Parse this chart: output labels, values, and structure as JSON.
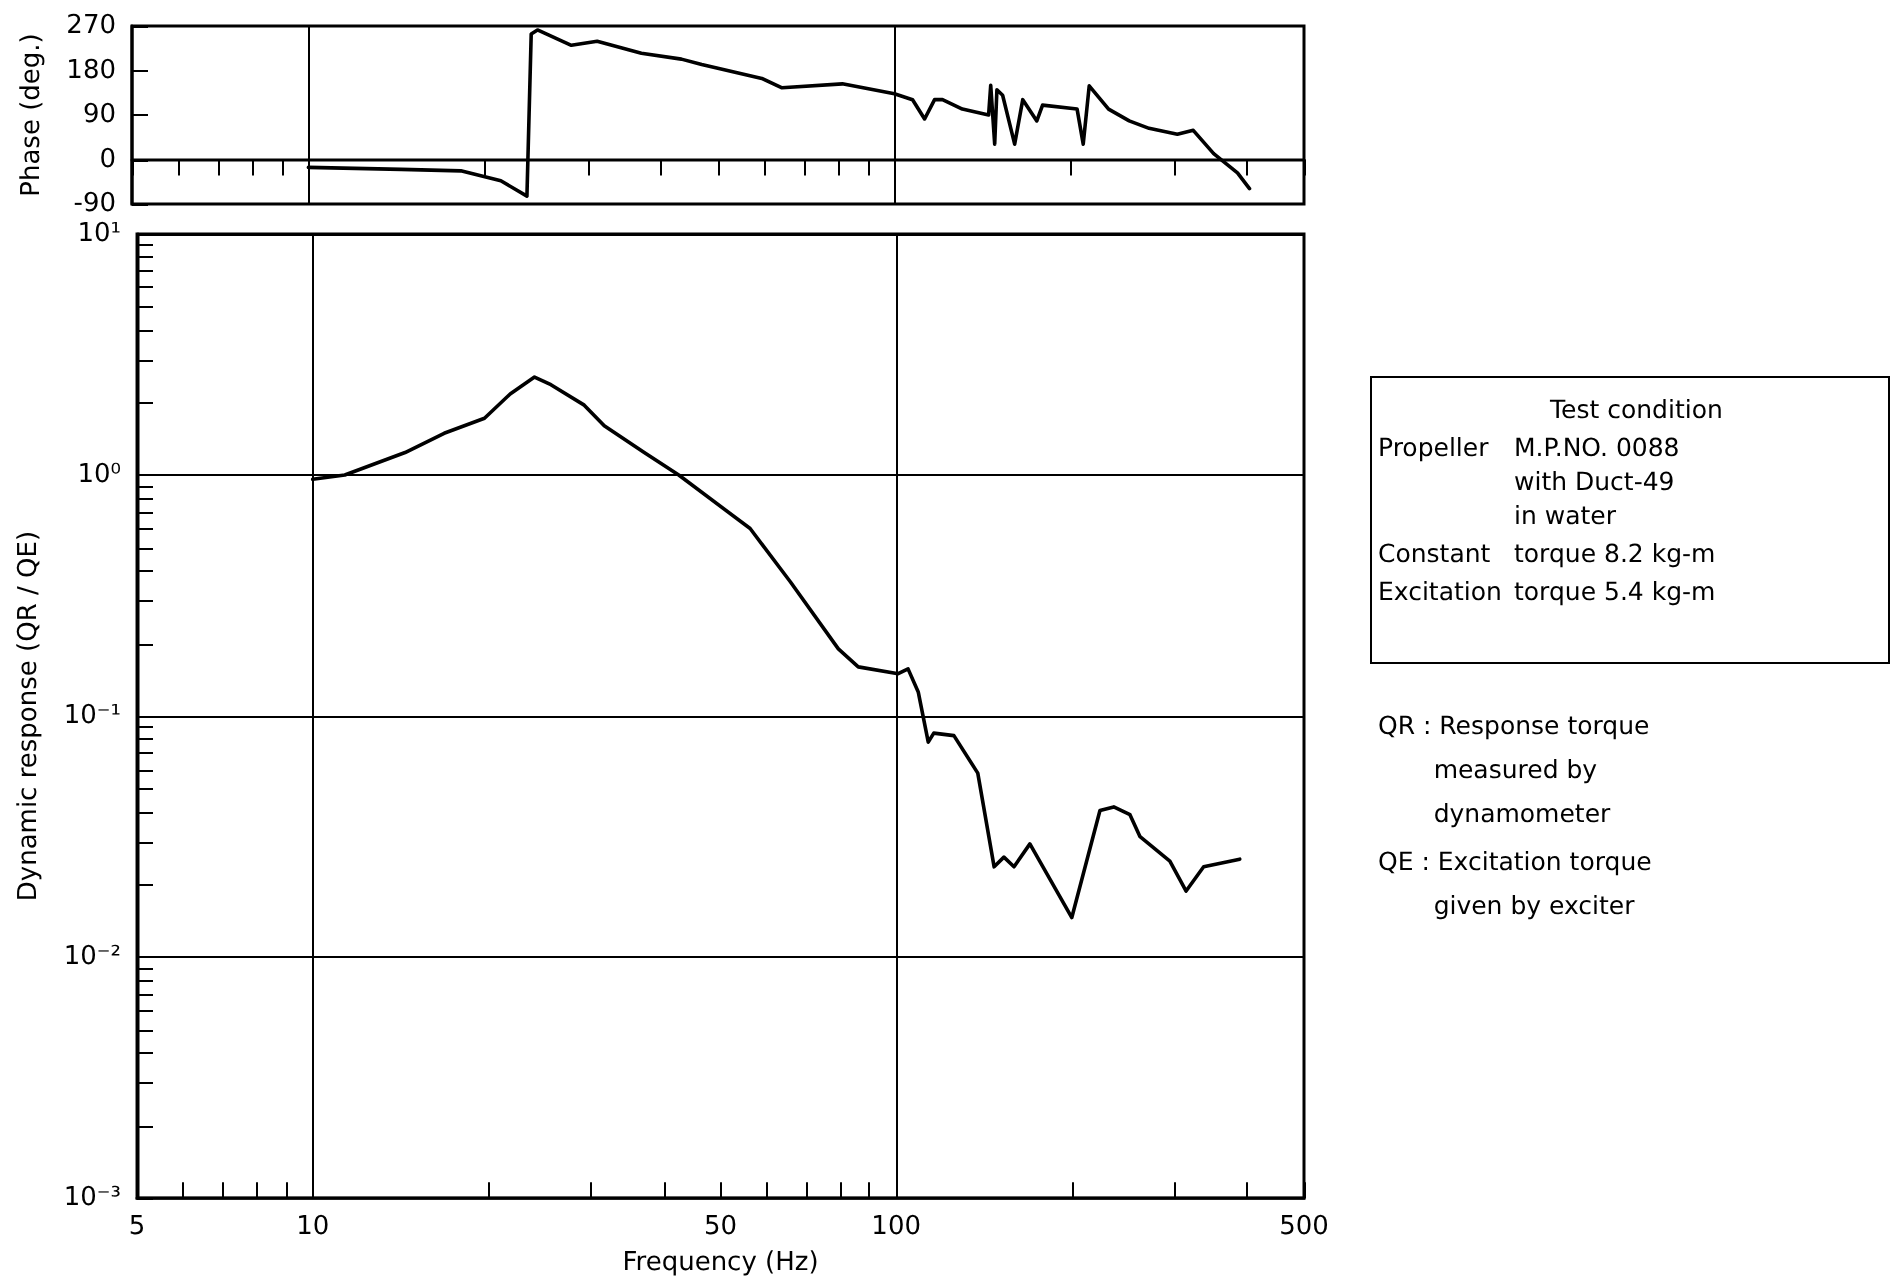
{
  "chart_data": [
    {
      "type": "line",
      "ylabel": "Phase (deg.)",
      "log": "x",
      "grid": false,
      "tick_labels": "y",
      "marker": "none",
      "line_style": "solid",
      "xlim": [
        5,
        500
      ],
      "xticks": [
        {
          "value": 5,
          "label": null
        },
        {
          "value": 6,
          "label": null
        },
        {
          "value": 7,
          "label": null
        },
        {
          "value": 8,
          "label": null
        },
        {
          "value": 9,
          "label": null
        },
        {
          "value": 10,
          "label": null
        },
        {
          "value": 20,
          "label": null
        },
        {
          "value": 30,
          "label": null
        },
        {
          "value": 40,
          "label": null
        },
        {
          "value": 50,
          "label": null
        },
        {
          "value": 60,
          "label": null
        },
        {
          "value": 70,
          "label": null
        },
        {
          "value": 80,
          "label": null
        },
        {
          "value": 90,
          "label": null
        },
        {
          "value": 100,
          "label": null
        },
        {
          "value": 200,
          "label": null
        },
        {
          "value": 300,
          "label": null
        },
        {
          "value": 400,
          "label": null
        },
        {
          "value": 500,
          "label": null
        }
      ],
      "ylim": [
        -90,
        270
      ],
      "yticks": [
        -90,
        0,
        90,
        180,
        270
      ],
      "ref_lines": [
        {
          "axis": "x",
          "value": 10,
          "label": null
        },
        {
          "axis": "x",
          "value": 100,
          "label": null
        }
      ],
      "series": [
        {
          "color": "#000000",
          "x": [
            10,
            14.4,
            18.2,
            21.3,
            23.6,
            24.0,
            24.6,
            28.1,
            31.1,
            37.0,
            43.3,
            46.9,
            59.4,
            64.3,
            81.5,
            100,
            107.4,
            112.6,
            117.1,
            120.8,
            130.6,
            144.8,
            146,
            148.3,
            149.6,
            153,
            160.4,
            165.6,
            175,
            179,
            205,
            210,
            215,
            232,
            251.6,
            272,
            304,
            323.6,
            350.6,
            385,
            403.6
          ],
          "values": [
            -16,
            -20,
            -23,
            -43,
            -74,
            254,
            262,
            231,
            239,
            215,
            203,
            192,
            164,
            145,
            153,
            133,
            121,
            82,
            121,
            121,
            102,
            90,
            150,
            31,
            141,
            130,
            31,
            121,
            78,
            110,
            102,
            31,
            149,
            102,
            78,
            63,
            51,
            59,
            12,
            -27,
            -59
          ]
        }
      ]
    },
    {
      "type": "line",
      "xlabel": "Frequency (Hz)",
      "ylabel": "Dynamic response (QR / QE)",
      "log": "xy",
      "grid": "y",
      "marker": "none",
      "line_style": "solid",
      "xlim": [
        5,
        500
      ],
      "xticks": [
        {
          "value": 5,
          "label": "5"
        },
        {
          "value": 6,
          "label": null
        },
        {
          "value": 7,
          "label": null
        },
        {
          "value": 8,
          "label": null
        },
        {
          "value": 9,
          "label": null
        },
        {
          "value": 10,
          "label": "10"
        },
        {
          "value": 20,
          "label": null
        },
        {
          "value": 30,
          "label": null
        },
        {
          "value": 40,
          "label": null
        },
        {
          "value": 50,
          "label": "50"
        },
        {
          "value": 60,
          "label": null
        },
        {
          "value": 70,
          "label": null
        },
        {
          "value": 80,
          "label": null
        },
        {
          "value": 90,
          "label": null
        },
        {
          "value": 100,
          "label": "100"
        },
        {
          "value": 200,
          "label": null
        },
        {
          "value": 300,
          "label": null
        },
        {
          "value": 400,
          "label": null
        },
        {
          "value": 500,
          "label": "500"
        }
      ],
      "ylim": [
        0.001,
        10
      ],
      "yticks": [
        {
          "value": 0.001,
          "label": "10⁻³"
        },
        {
          "value": 0.002,
          "label": null
        },
        {
          "value": 0.003,
          "label": null
        },
        {
          "value": 0.004,
          "label": null
        },
        {
          "value": 0.005,
          "label": null
        },
        {
          "value": 0.006,
          "label": null
        },
        {
          "value": 0.007,
          "label": null
        },
        {
          "value": 0.008,
          "label": null
        },
        {
          "value": 0.009,
          "label": null
        },
        {
          "value": 0.01,
          "label": "10⁻²"
        },
        {
          "value": 0.02,
          "label": null
        },
        {
          "value": 0.03,
          "label": null
        },
        {
          "value": 0.04,
          "label": null
        },
        {
          "value": 0.05,
          "label": null
        },
        {
          "value": 0.06,
          "label": null
        },
        {
          "value": 0.07,
          "label": null
        },
        {
          "value": 0.08,
          "label": null
        },
        {
          "value": 0.09,
          "label": null
        },
        {
          "value": 0.1,
          "label": "10⁻¹"
        },
        {
          "value": 0.2,
          "label": null
        },
        {
          "value": 0.3,
          "label": null
        },
        {
          "value": 0.4,
          "label": null
        },
        {
          "value": 0.5,
          "label": null
        },
        {
          "value": 0.6,
          "label": null
        },
        {
          "value": 0.7,
          "label": null
        },
        {
          "value": 0.8,
          "label": null
        },
        {
          "value": 0.9,
          "label": null
        },
        {
          "value": 1,
          "label": "10⁰"
        },
        {
          "value": 2,
          "label": null
        },
        {
          "value": 3,
          "label": null
        },
        {
          "value": 4,
          "label": null
        },
        {
          "value": 5,
          "label": null
        },
        {
          "value": 6,
          "label": null
        },
        {
          "value": 7,
          "label": null
        },
        {
          "value": 8,
          "label": null
        },
        {
          "value": 9,
          "label": null
        },
        {
          "value": 10,
          "label": "10¹"
        }
      ],
      "ref_lines": [
        {
          "axis": "x",
          "value": 10,
          "label": null
        },
        {
          "axis": "x",
          "value": 100,
          "label": null
        }
      ],
      "annotations": [
        "Test condition",
        "Propeller",
        "M.P.NO. 0088\nwith Duct-49\nin water",
        "Constant",
        "torque 8.2 kg-m",
        "Excitation",
        "torque 5.4 kg-m",
        "QR : Response torque\n       measured by\n       dynamometer",
        "QE : Excitation torque\n       given by exciter"
      ],
      "series": [
        {
          "color": "#000000",
          "x": [
            10,
            11.35,
            14.4,
            16.8,
            19.7,
            21.8,
            24.0,
            25.6,
            29.2,
            31.6,
            37.0,
            42.4,
            56.2,
            65.9,
            79.6,
            86.1,
            100.8,
            104.8,
            109.1,
            113.5,
            116,
            125.6,
            138,
            147.2,
            153,
            159.2,
            169.5,
            200,
            223.5,
            236,
            251.6,
            261.8,
            294.5,
            314,
            336.5,
            388
          ],
          "values": [
            0.96,
            1.0,
            1.24,
            1.49,
            1.72,
            2.17,
            2.55,
            2.37,
            1.95,
            1.6,
            1.24,
            1.0,
            0.6,
            0.36,
            0.19,
            0.16,
            0.15,
            0.157,
            0.126,
            0.078,
            0.085,
            0.083,
            0.058,
            0.0237,
            0.026,
            0.0237,
            0.0295,
            0.0146,
            0.0406,
            0.042,
            0.039,
            0.0316,
            0.025,
            0.0188,
            0.0237,
            0.0255
          ]
        }
      ]
    }
  ]
}
